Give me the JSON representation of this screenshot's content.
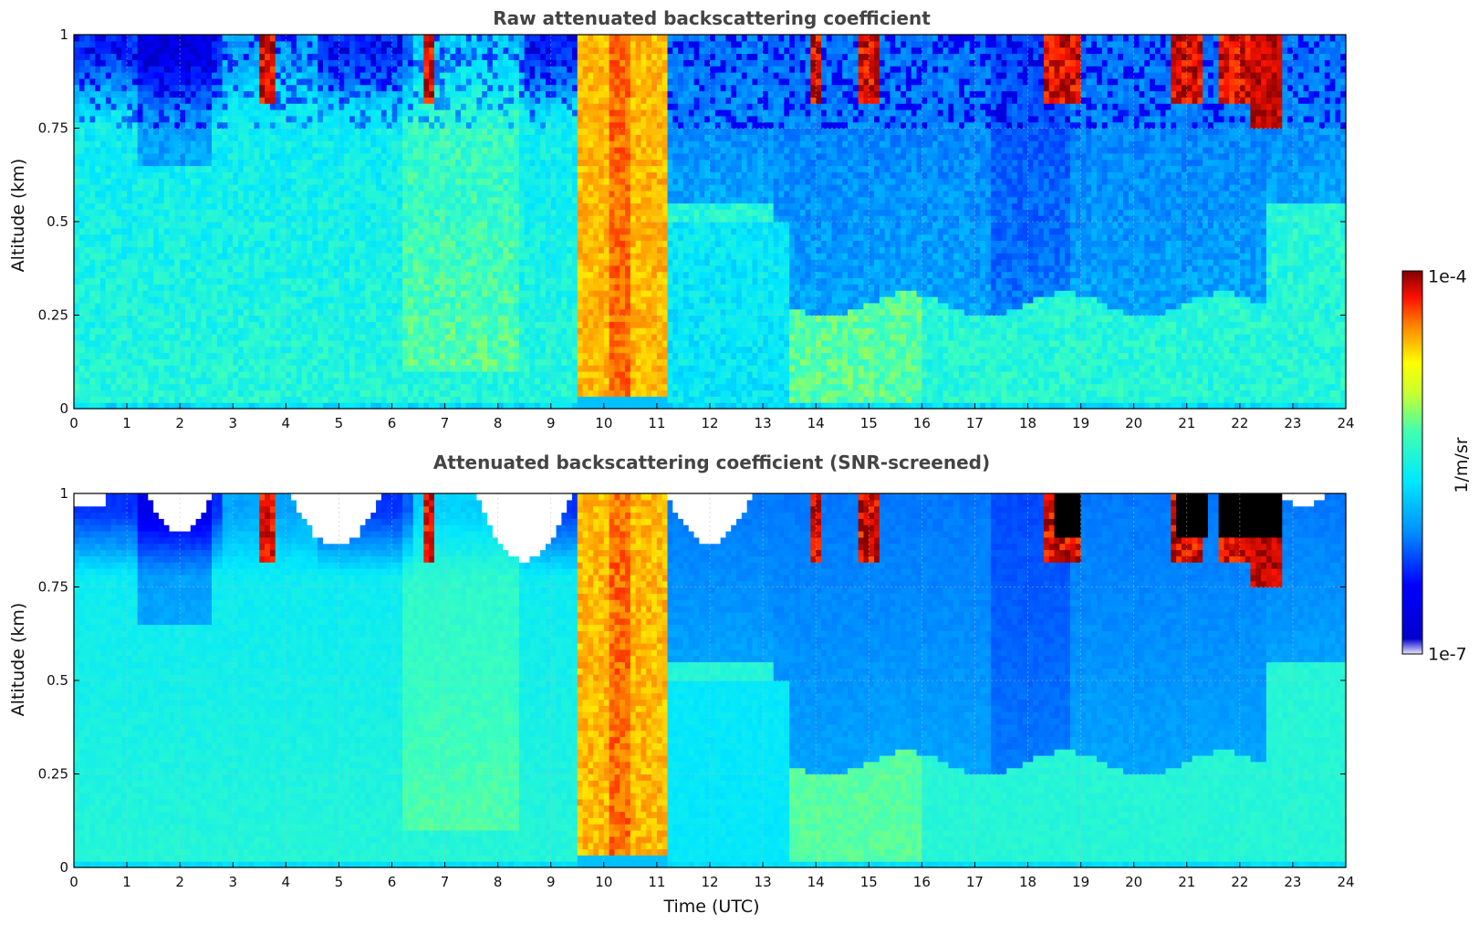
{
  "chart_data": [
    {
      "type": "heatmap",
      "title": "Raw attenuated backscattering coefficient",
      "xlabel": "",
      "ylabel": "Altitude (km)",
      "xlim": [
        0,
        24
      ],
      "ylim": [
        0,
        1
      ],
      "x_ticks": [
        "0",
        "1",
        "2",
        "3",
        "4",
        "5",
        "6",
        "7",
        "8",
        "9",
        "10",
        "11",
        "12",
        "13",
        "14",
        "15",
        "16",
        "17",
        "18",
        "19",
        "20",
        "21",
        "22",
        "23",
        "24"
      ],
      "y_ticks": [
        "0",
        "0.25",
        "0.5",
        "0.75",
        "1"
      ],
      "grid": true,
      "snr_screened": false,
      "colorscale": "jet",
      "value_range": [
        "1e-7",
        "1e-4"
      ],
      "color_units": "1/m/sr"
    },
    {
      "type": "heatmap",
      "title": "Attenuated backscattering coefficient (SNR-screened)",
      "xlabel": "Time (UTC)",
      "ylabel": "Altitude (km)",
      "xlim": [
        0,
        24
      ],
      "ylim": [
        0,
        1
      ],
      "x_ticks": [
        "0",
        "1",
        "2",
        "3",
        "4",
        "5",
        "6",
        "7",
        "8",
        "9",
        "10",
        "11",
        "12",
        "13",
        "14",
        "15",
        "16",
        "17",
        "18",
        "19",
        "20",
        "21",
        "22",
        "23",
        "24"
      ],
      "y_ticks": [
        "0",
        "0.25",
        "0.5",
        "0.75",
        "1"
      ],
      "grid": true,
      "snr_screened": true,
      "colorscale": "jet",
      "value_range": [
        "1e-7",
        "1e-4"
      ],
      "color_units": "1/m/sr"
    }
  ],
  "colorbar": {
    "max_label": "1e-4",
    "min_label": "1e-7",
    "unit_label": "1/m/sr"
  },
  "colors": {
    "jet": [
      "#00008f",
      "#0000ff",
      "#00ffff",
      "#ffff00",
      "#ff0000",
      "#800000"
    ],
    "saturated": "#000000",
    "screened": "#ffffff"
  }
}
